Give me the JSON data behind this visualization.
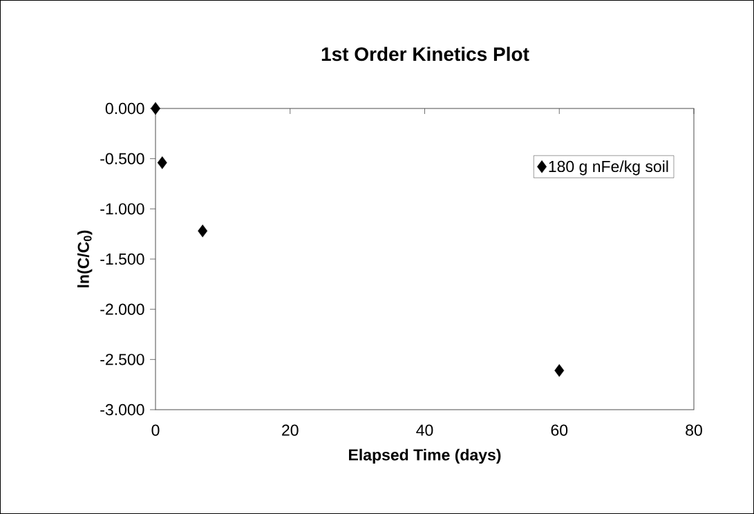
{
  "chart_data": {
    "type": "scatter",
    "title": "1st Order Kinetics Plot",
    "xlabel": "Elapsed Time (days)",
    "ylabel": "ln(C/C$_{0}$)",
    "series": [
      {
        "name": "180 g nFe/kg soil",
        "color": "#000000",
        "x": [
          0,
          1,
          7,
          60
        ],
        "values": [
          0.0,
          -0.54,
          -1.22,
          -2.61
        ]
      }
    ],
    "xlim": [
      0,
      80
    ],
    "ylim": [
      -3,
      0
    ],
    "xticks": [
      0,
      20,
      40,
      60,
      80
    ],
    "yticks": [
      {
        "value": 0,
        "label": "0.000"
      },
      {
        "value": -0.5,
        "label": "-0.500"
      },
      {
        "value": -1,
        "label": "-1.000"
      },
      {
        "value": -1.5,
        "label": "-1.500"
      },
      {
        "value": -2,
        "label": "-2.000"
      },
      {
        "value": -2.5,
        "label": "-2.500"
      },
      {
        "value": -3,
        "label": "-3.000"
      }
    ],
    "marker": "diamond",
    "legend": "top right",
    "grid": false
  }
}
